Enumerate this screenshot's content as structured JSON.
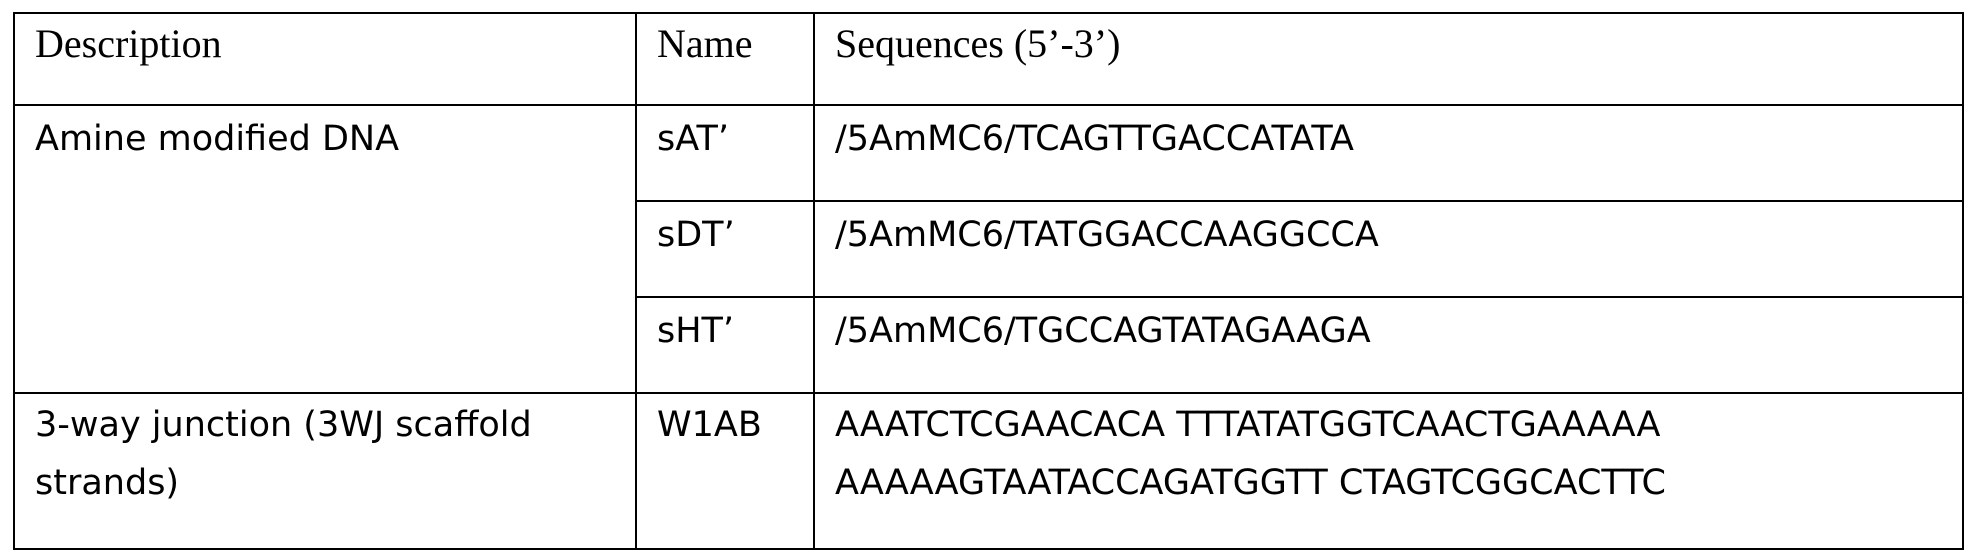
{
  "table": {
    "headers": {
      "description": "Description",
      "name": "Name",
      "sequences": "Sequences (5’-3’)"
    },
    "groups": [
      {
        "description": "Amine modified DNA",
        "rows": [
          {
            "name": "sAT’",
            "sequence": "/5AmMC6/TCAGTTGACCATATA"
          },
          {
            "name": "sDT’",
            "sequence": "/5AmMC6/TATGGACCAAGGCCA"
          },
          {
            "name": "sHT’",
            "sequence": "/5AmMC6/TGCCAGTATAGAAGA"
          }
        ]
      },
      {
        "description_lines": [
          "3-way junction (3WJ scaffold",
          "strands)"
        ],
        "rows": [
          {
            "name": "W1AB",
            "sequence_lines": [
              "AAATCTCGAACACA TTTATATGGTCAACTGAAAAA",
              "AAAAAGTAATACCAGATGGTT CTAGTCGGCACTTC"
            ]
          }
        ]
      }
    ]
  }
}
